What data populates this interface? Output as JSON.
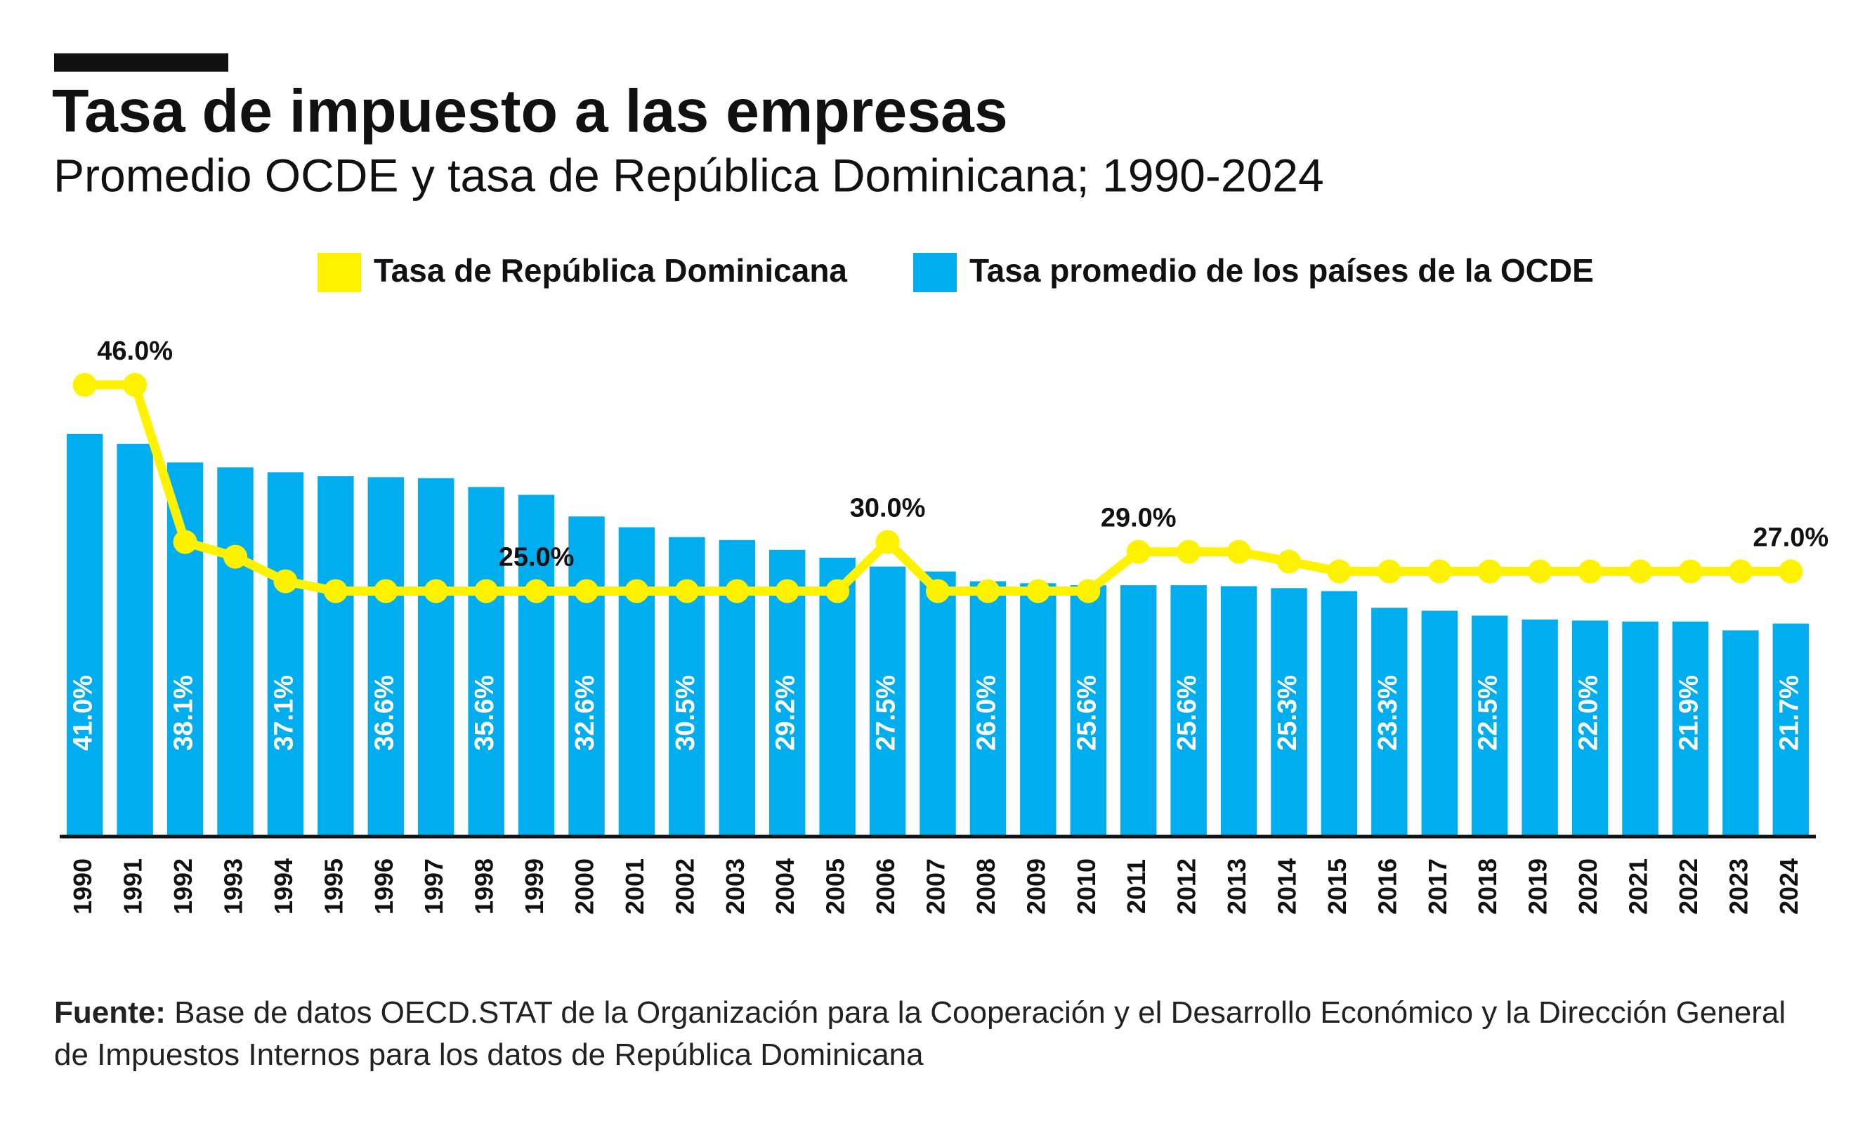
{
  "chart_data": {
    "type": "bar",
    "title": "Tasa de impuesto a las empresas",
    "subtitle": "Promedio OCDE y tasa de República Dominicana; 1990-2024",
    "categories": [
      "1990",
      "1991",
      "1992",
      "1993",
      "1994",
      "1995",
      "1996",
      "1997",
      "1998",
      "1999",
      "2000",
      "2001",
      "2002",
      "2003",
      "2004",
      "2005",
      "2006",
      "2007",
      "2008",
      "2009",
      "2010",
      "2011",
      "2012",
      "2013",
      "2014",
      "2015",
      "2016",
      "2017",
      "2018",
      "2019",
      "2020",
      "2021",
      "2022",
      "2023",
      "2024"
    ],
    "series": [
      {
        "name": "Tasa de República Dominicana",
        "type": "line",
        "color": "#fff200",
        "values": [
          46.0,
          46.0,
          30.0,
          28.5,
          26.0,
          25.0,
          25.0,
          25.0,
          25.0,
          25.0,
          25.0,
          25.0,
          25.0,
          25.0,
          25.0,
          25.0,
          30.0,
          25.0,
          25.0,
          25.0,
          25.0,
          29.0,
          29.0,
          29.0,
          28.0,
          27.0,
          27.0,
          27.0,
          27.0,
          27.0,
          27.0,
          27.0,
          27.0,
          27.0,
          27.0
        ],
        "value_labels": [
          null,
          "46.0%",
          null,
          null,
          null,
          null,
          null,
          null,
          null,
          "25.0%",
          null,
          null,
          null,
          null,
          null,
          null,
          "30.0%",
          null,
          null,
          null,
          null,
          "29.0%",
          null,
          null,
          null,
          null,
          null,
          null,
          null,
          null,
          null,
          null,
          null,
          null,
          "27.0%"
        ]
      },
      {
        "name": "Tasa promedio de los países de la OCDE",
        "type": "bar",
        "color": "#00aeef",
        "values": [
          41.0,
          40.0,
          38.1,
          37.6,
          37.1,
          36.7,
          36.6,
          36.5,
          35.6,
          34.8,
          32.6,
          31.5,
          30.5,
          30.2,
          29.2,
          28.4,
          27.5,
          27.0,
          26.0,
          25.8,
          25.6,
          25.6,
          25.6,
          25.5,
          25.3,
          25.0,
          23.3,
          23.0,
          22.5,
          22.1,
          22.0,
          21.9,
          21.9,
          21.0,
          21.7
        ],
        "value_labels": [
          "41.0%",
          null,
          "38.1%",
          null,
          "37.1%",
          null,
          "36.6%",
          null,
          "35.6%",
          null,
          "32.6%",
          null,
          "30.5%",
          null,
          "29.2%",
          null,
          "27.5%",
          null,
          "26.0%",
          null,
          "25.6%",
          null,
          "25.6%",
          null,
          "25.3%",
          null,
          "23.3%",
          null,
          "22.5%",
          null,
          "22.0%",
          null,
          "21.9%",
          null,
          "21.7%"
        ]
      }
    ],
    "ylim": [
      0,
      50
    ],
    "source_label": "Fuente:",
    "source": "Base de datos OECD.STAT de la Organización para la Cooperación y el Desarrollo Económico y la Dirección General de Impuestos Internos para los datos de República Dominicana"
  }
}
